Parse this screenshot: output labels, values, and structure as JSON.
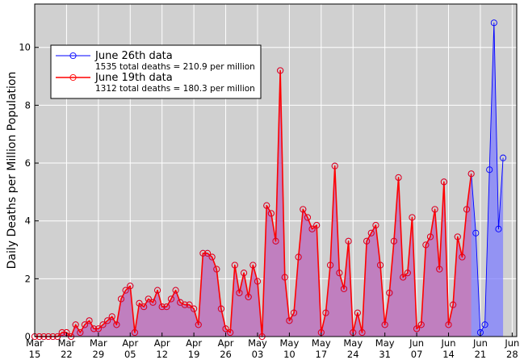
{
  "chart_data": {
    "type": "line",
    "title": "",
    "xlabel": "",
    "ylabel": "Daily Deaths per Million Population",
    "ylim": [
      0,
      11.5
    ],
    "yticks": [
      0,
      2,
      4,
      6,
      8,
      10
    ],
    "x_start_date": "2020-03-15",
    "xlim_dates": [
      "2020-03-15",
      "2020-06-29"
    ],
    "xticks": [
      {
        "month": "Mar",
        "day": "15"
      },
      {
        "month": "Mar",
        "day": "22"
      },
      {
        "month": "Mar",
        "day": "29"
      },
      {
        "month": "Apr",
        "day": "05"
      },
      {
        "month": "Apr",
        "day": "12"
      },
      {
        "month": "Apr",
        "day": "19"
      },
      {
        "month": "Apr",
        "day": "26"
      },
      {
        "month": "May",
        "day": "03"
      },
      {
        "month": "May",
        "day": "10"
      },
      {
        "month": "May",
        "day": "17"
      },
      {
        "month": "May",
        "day": "24"
      },
      {
        "month": "May",
        "day": "31"
      },
      {
        "month": "Jun",
        "day": "07"
      },
      {
        "month": "Jun",
        "day": "14"
      },
      {
        "month": "Jun",
        "day": "21"
      },
      {
        "month": "Jun",
        "day": "28"
      }
    ],
    "grid": true,
    "legend_position": "top-left",
    "background_color": "#d0d0d0",
    "series": [
      {
        "name": "June 26th data",
        "subtitle": "1535 total deaths = 210.9 per million",
        "color": "#0000ff",
        "fill": "#7f7fff",
        "start_date": "2020-03-15",
        "values": [
          0,
          0,
          0,
          0,
          0,
          0,
          0.14,
          0.14,
          0,
          0.41,
          0.14,
          0.41,
          0.55,
          0.27,
          0.27,
          0.41,
          0.55,
          0.69,
          0.41,
          1.3,
          1.6,
          1.75,
          0.14,
          1.15,
          1.03,
          1.3,
          1.18,
          1.6,
          1.03,
          1.03,
          1.3,
          1.6,
          1.18,
          1.1,
          1.1,
          0.96,
          0.41,
          2.88,
          2.88,
          2.75,
          2.33,
          0.96,
          0.27,
          0.14,
          2.47,
          1.51,
          2.2,
          1.37,
          2.47,
          1.91,
          0,
          4.53,
          4.26,
          3.3,
          9.2,
          2.05,
          0.55,
          0.82,
          2.75,
          4.4,
          4.12,
          3.72,
          3.85,
          0.14,
          0.82,
          2.47,
          5.9,
          2.2,
          1.65,
          3.3,
          0.14,
          0.82,
          0.14,
          3.3,
          3.58,
          3.85,
          2.47,
          0.41,
          1.51,
          3.3,
          5.5,
          2.05,
          2.2,
          4.12,
          0.27,
          0.41,
          3.17,
          3.45,
          4.4,
          2.33,
          5.35,
          0.41,
          1.1,
          3.45,
          2.75,
          4.4,
          5.63,
          3.58,
          0.14,
          0.41,
          5.77,
          10.85,
          3.72,
          6.18
        ]
      },
      {
        "name": "June 19th data",
        "subtitle": "1312 total deaths = 180.3 per million",
        "color": "#ff0000",
        "fill": "#c07fbf",
        "start_date": "2020-03-15",
        "values": [
          0,
          0,
          0,
          0,
          0,
          0,
          0.14,
          0.14,
          0,
          0.41,
          0.14,
          0.41,
          0.55,
          0.27,
          0.27,
          0.41,
          0.55,
          0.69,
          0.41,
          1.3,
          1.6,
          1.75,
          0.14,
          1.15,
          1.03,
          1.3,
          1.18,
          1.6,
          1.03,
          1.03,
          1.3,
          1.6,
          1.18,
          1.1,
          1.1,
          0.96,
          0.41,
          2.88,
          2.88,
          2.75,
          2.33,
          0.96,
          0.27,
          0.14,
          2.47,
          1.51,
          2.2,
          1.37,
          2.47,
          1.91,
          0,
          4.53,
          4.26,
          3.3,
          9.2,
          2.05,
          0.55,
          0.82,
          2.75,
          4.4,
          4.12,
          3.72,
          3.85,
          0.14,
          0.82,
          2.47,
          5.9,
          2.2,
          1.65,
          3.3,
          0.14,
          0.82,
          0.14,
          3.3,
          3.58,
          3.85,
          2.47,
          0.41,
          1.51,
          3.3,
          5.5,
          2.05,
          2.2,
          4.12,
          0.27,
          0.41,
          3.17,
          3.45,
          4.4,
          2.33,
          5.35,
          0.41,
          1.1,
          3.45,
          2.75,
          4.4,
          5.63
        ]
      }
    ]
  }
}
